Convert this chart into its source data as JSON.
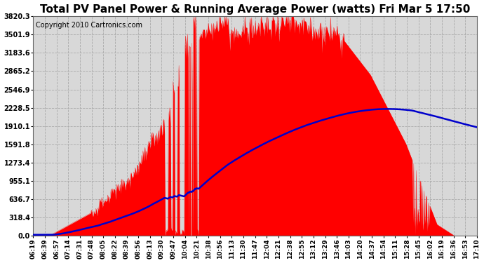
{
  "title": "Total PV Panel Power & Running Average Power (watts) Fri Mar 5 17:50",
  "copyright": "Copyright 2010 Cartronics.com",
  "y_ticks": [
    0.0,
    318.4,
    636.7,
    955.1,
    1273.4,
    1591.8,
    1910.1,
    2228.5,
    2546.9,
    2865.2,
    3183.6,
    3501.9,
    3820.3
  ],
  "ylim": [
    0,
    3820.3
  ],
  "x_labels": [
    "06:19",
    "06:39",
    "06:57",
    "07:14",
    "07:31",
    "07:48",
    "08:05",
    "08:22",
    "08:39",
    "08:56",
    "09:13",
    "09:30",
    "09:47",
    "10:04",
    "10:21",
    "10:38",
    "10:56",
    "11:13",
    "11:30",
    "11:47",
    "12:04",
    "12:21",
    "12:38",
    "12:55",
    "13:12",
    "13:29",
    "13:46",
    "14:03",
    "14:20",
    "14:37",
    "14:54",
    "15:11",
    "15:28",
    "15:45",
    "16:02",
    "16:19",
    "16:36",
    "16:53",
    "17:10"
  ],
  "background_color": "#ffffff",
  "plot_bg_color": "#d8d8d8",
  "grid_color": "#aaaaaa",
  "red_color": "#ff0000",
  "blue_color": "#0000cc",
  "title_fontsize": 11,
  "copyright_fontsize": 7,
  "n_points": 680
}
